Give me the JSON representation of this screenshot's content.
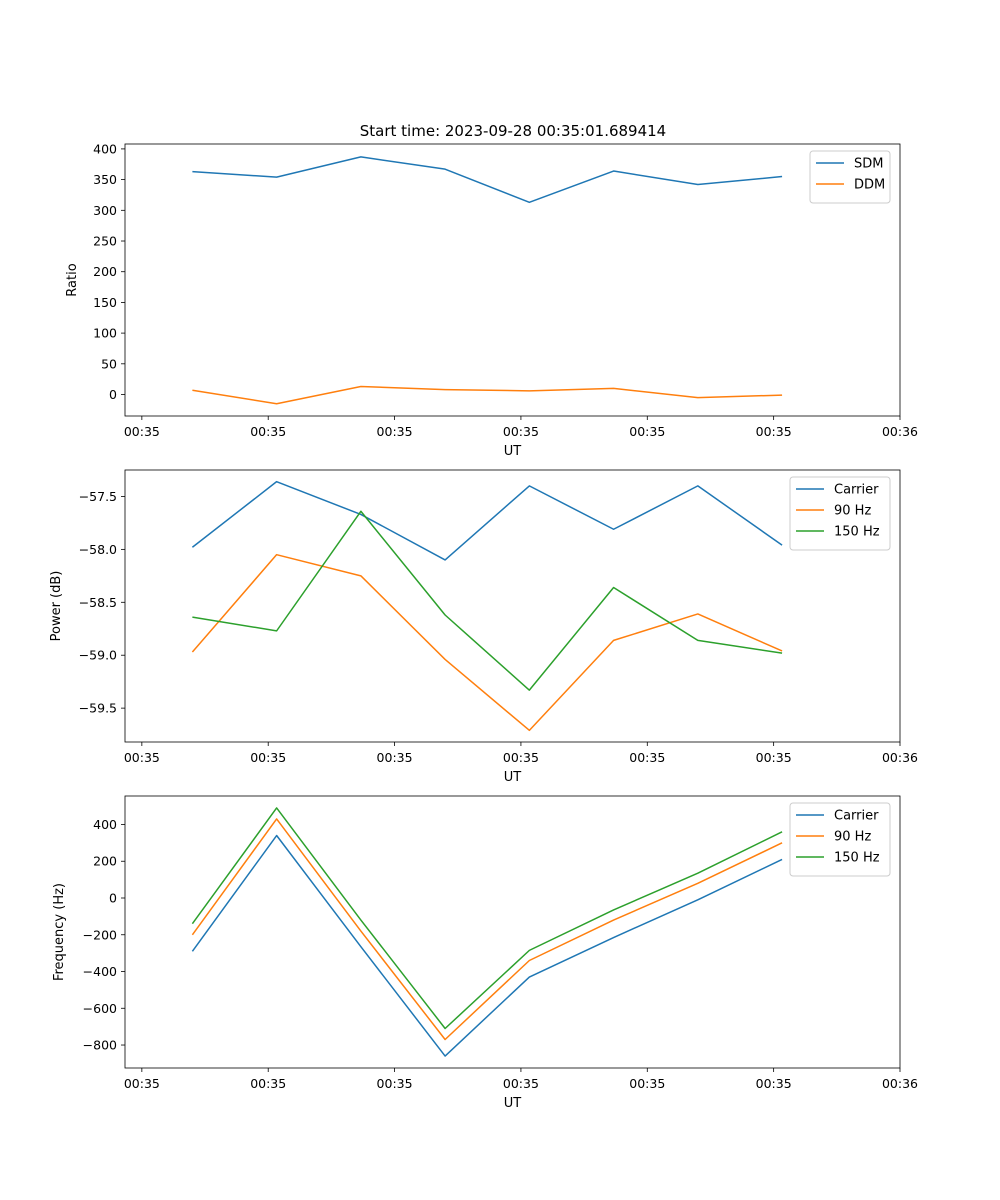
{
  "figure": {
    "title": "Start time: 2023-09-28 00:35:01.689414"
  },
  "chart_data": [
    {
      "type": "line",
      "x": [
        1,
        2,
        3,
        4,
        5,
        6,
        7,
        8
      ],
      "xlabel": "UT",
      "ylabel": "Ratio",
      "xlim": [
        0.2,
        9.4
      ],
      "xticks": [
        0.4,
        1.9,
        3.4,
        4.9,
        6.4,
        7.9,
        9.4
      ],
      "xtick_labels": [
        "00:35",
        "00:35",
        "00:35",
        "00:35",
        "00:35",
        "00:35",
        "00:36"
      ],
      "ylim": [
        -35,
        408
      ],
      "yticks": [
        0,
        50,
        100,
        150,
        200,
        250,
        300,
        350,
        400
      ],
      "ytick_labels": [
        "0",
        "50",
        "100",
        "150",
        "200",
        "250",
        "300",
        "350",
        "400"
      ],
      "legend": "top-right",
      "series": [
        {
          "name": "SDM",
          "color": "#1f77b4",
          "values": [
            363,
            354,
            387,
            367,
            313,
            364,
            342,
            355
          ]
        },
        {
          "name": "DDM",
          "color": "#ff7f0e",
          "values": [
            7,
            -15,
            13,
            8,
            6,
            10,
            -5,
            -1
          ]
        }
      ]
    },
    {
      "type": "line",
      "x": [
        1,
        2,
        3,
        4,
        5,
        6,
        7,
        8
      ],
      "xlabel": "UT",
      "ylabel": "Power (dB)",
      "xlim": [
        0.2,
        9.4
      ],
      "xticks": [
        0.4,
        1.9,
        3.4,
        4.9,
        6.4,
        7.9,
        9.4
      ],
      "xtick_labels": [
        "00:35",
        "00:35",
        "00:35",
        "00:35",
        "00:35",
        "00:35",
        "00:36"
      ],
      "ylim": [
        -59.82,
        -57.25
      ],
      "yticks": [
        -59.5,
        -59.0,
        -58.5,
        -58.0,
        -57.5
      ],
      "ytick_labels": [
        "−59.5",
        "−59.0",
        "−58.5",
        "−58.0",
        "−57.5"
      ],
      "legend": "top-right",
      "series": [
        {
          "name": "Carrier",
          "color": "#1f77b4",
          "values": [
            -57.98,
            -57.36,
            -57.67,
            -58.1,
            -57.4,
            -57.81,
            -57.4,
            -57.96
          ]
        },
        {
          "name": "90 Hz",
          "color": "#ff7f0e",
          "values": [
            -58.97,
            -58.05,
            -58.25,
            -59.04,
            -59.71,
            -58.86,
            -58.61,
            -58.96
          ]
        },
        {
          "name": "150 Hz",
          "color": "#2ca02c",
          "values": [
            -58.64,
            -58.77,
            -57.64,
            -58.62,
            -59.33,
            -58.36,
            -58.86,
            -58.98
          ]
        }
      ]
    },
    {
      "type": "line",
      "x": [
        1,
        2,
        3,
        4,
        5,
        6,
        7,
        8
      ],
      "xlabel": "UT",
      "ylabel": "Frequency (Hz)",
      "xlim": [
        0.2,
        9.4
      ],
      "xticks": [
        0.4,
        1.9,
        3.4,
        4.9,
        6.4,
        7.9,
        9.4
      ],
      "xtick_labels": [
        "00:35",
        "00:35",
        "00:35",
        "00:35",
        "00:35",
        "00:35",
        "00:36"
      ],
      "ylim": [
        -925,
        555
      ],
      "yticks": [
        -800,
        -600,
        -400,
        -200,
        0,
        200,
        400
      ],
      "ytick_labels": [
        "−800",
        "−600",
        "−400",
        "−200",
        "0",
        "200",
        "400"
      ],
      "legend": "top-right",
      "series": [
        {
          "name": "Carrier",
          "color": "#1f77b4",
          "values": [
            -290,
            340,
            -265,
            -860,
            -430,
            -215,
            -10,
            210
          ]
        },
        {
          "name": "90 Hz",
          "color": "#ff7f0e",
          "values": [
            -200,
            430,
            -180,
            -770,
            -340,
            -120,
            80,
            300
          ]
        },
        {
          "name": "150 Hz",
          "color": "#2ca02c",
          "values": [
            -140,
            490,
            -120,
            -710,
            -285,
            -65,
            135,
            360
          ]
        }
      ]
    }
  ]
}
